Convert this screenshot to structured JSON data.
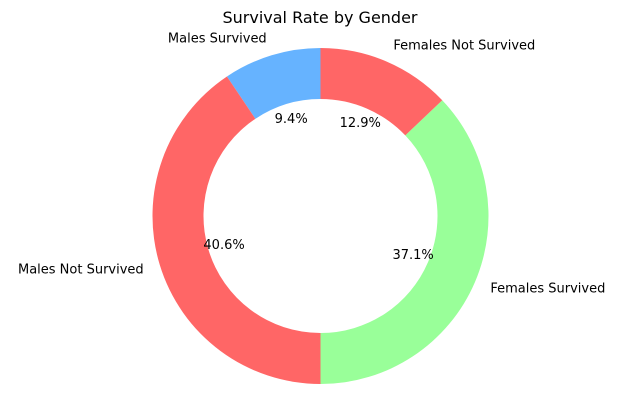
{
  "chart_data": {
    "type": "pie",
    "style": "donut",
    "title": "Survival Rate by Gender",
    "labels": [
      "Males Survived",
      "Males Not Survived",
      "Females Survived",
      "Females Not Survived"
    ],
    "values": [
      9.4,
      40.6,
      37.1,
      12.9
    ],
    "value_labels": [
      "9.4%",
      "40.6%",
      "37.1%",
      "12.9%"
    ],
    "colors": [
      "#66b3ff",
      "#ff6666",
      "#99ff99",
      "#ff6666"
    ],
    "start_angle_deg": 90,
    "direction": "counterclockwise",
    "legend": "none"
  }
}
